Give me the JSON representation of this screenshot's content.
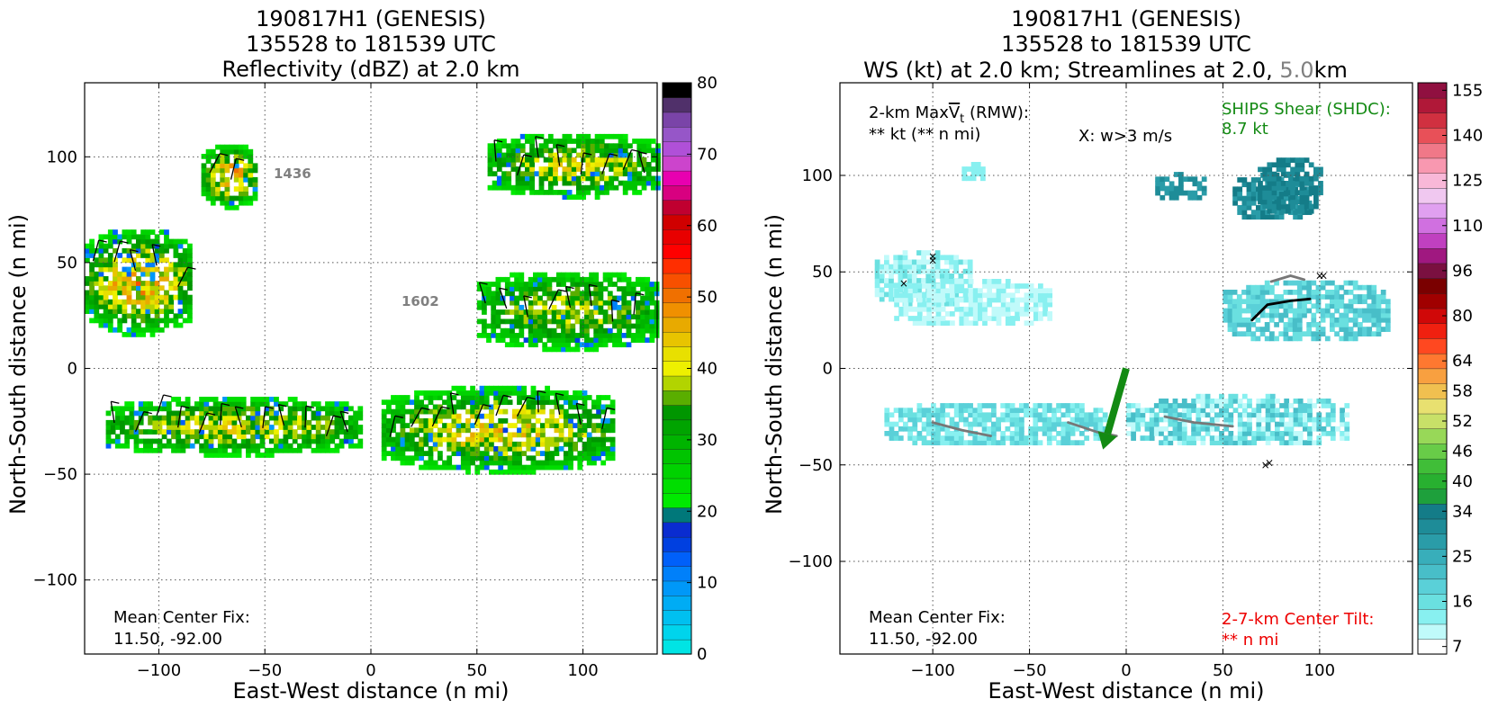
{
  "left_panel": {
    "title_lines": [
      "190817H1 (GENESIS)",
      "135528 to 181539 UTC",
      "Reflectivity (dBZ) at 2.0 km"
    ],
    "center_fix_label": "Mean Center Fix:",
    "center_fix_value": "11.50, -92.00",
    "time_labels": [
      "1436",
      "1602"
    ]
  },
  "right_panel": {
    "title_lines": [
      "190817H1 (GENESIS)",
      "135528 to 181539 UTC"
    ],
    "title_line3_prefix": "WS (kt) at 2.0 km; Streamlines at 2.0, ",
    "title_line3_gray": "5.0",
    "title_line3_suffix": "km",
    "maxvt_prefix": "2-km Max",
    "maxvt_v": "V",
    "maxvt_sub": "t",
    "maxvt_suffix": " (RMW):",
    "maxvt_value": "** kt (** n mi)",
    "w_label": "X: w>3 m/s",
    "ships_label": "SHIPS Shear (SHDC):",
    "ships_value": "8.7 kt",
    "center_fix_label": "Mean Center Fix:",
    "center_fix_value": "11.50, -92.00",
    "tilt_label": "2-7-km Center Tilt:",
    "tilt_value": "** n mi"
  },
  "colors": {
    "ships": "#138a13",
    "tilt": "#ee0000",
    "gray_text": "#808080",
    "shear_arrow": "#138a13"
  },
  "chart_data": [
    {
      "type": "heatmap",
      "title": "190817H1 (GENESIS) 135528 to 181539 UTC Reflectivity (dBZ) at 2.0 km",
      "xlabel": "East-West distance (n mi)",
      "ylabel": "North-South distance (n mi)",
      "xlim": [
        -135,
        135
      ],
      "ylim": [
        -135,
        135
      ],
      "xticks": [
        -100,
        -50,
        0,
        50,
        100
      ],
      "yticks": [
        -100,
        -50,
        0,
        50,
        100
      ],
      "grid": true,
      "colorbar": {
        "ticks": [
          0,
          10,
          20,
          30,
          40,
          50,
          60,
          70,
          80
        ],
        "bins": 32,
        "colors": [
          "#00e4e4",
          "#00d4ec",
          "#00c0f0",
          "#00acf4",
          "#0098f8",
          "#0080fa",
          "#0060fa",
          "#0040e0",
          "#0a2cd0",
          "#00787a",
          "#00ea00",
          "#00de00",
          "#00d200",
          "#00c400",
          "#00b400",
          "#00a400",
          "#009600",
          "#5aae00",
          "#b2d400",
          "#eef000",
          "#e8e000",
          "#e8c400",
          "#e8aa00",
          "#f09000",
          "#f07000",
          "#f85000",
          "#ff2e00",
          "#ff0000",
          "#e80000",
          "#d00000",
          "#c00030",
          "#d80080",
          "#e800b0",
          "#cc44cc",
          "#b050d8",
          "#9656c8",
          "#7a44a8",
          "#50306a",
          "#000000"
        ],
        "ticklabels_note": "colorbar 0-80 dBZ"
      },
      "echo_regions": [
        {
          "name": "north-west cells",
          "x": [
            -80,
            -55
          ],
          "y": [
            75,
            105
          ],
          "peak_dbz": 45
        },
        {
          "name": "west cluster",
          "x": [
            -135,
            -85
          ],
          "y": [
            15,
            65
          ],
          "peak_dbz": 45
        },
        {
          "name": "north-east band",
          "x": [
            55,
            135
          ],
          "y": [
            80,
            110
          ],
          "peak_dbz": 40
        },
        {
          "name": "east band",
          "x": [
            50,
            135
          ],
          "y": [
            8,
            45
          ],
          "peak_dbz": 38
        },
        {
          "name": "southern band west",
          "x": [
            -125,
            -5
          ],
          "y": [
            -42,
            -15
          ],
          "peak_dbz": 40
        },
        {
          "name": "southern band east",
          "x": [
            5,
            115
          ],
          "y": [
            -50,
            -10
          ],
          "peak_dbz": 42
        }
      ]
    },
    {
      "type": "heatmap",
      "title": "190817H1 (GENESIS) 135528 to 181539 UTC WS (kt) at 2.0 km; Streamlines at 2.0, 5.0km",
      "xlabel": "East-West distance (n mi)",
      "ylabel": "North-South distance (n mi)",
      "xlim": [
        -148,
        148
      ],
      "ylim": [
        -148,
        148
      ],
      "xticks": [
        -100,
        -50,
        0,
        50,
        100
      ],
      "yticks": [
        -100,
        -50,
        0,
        50,
        100
      ],
      "grid": true,
      "colorbar": {
        "ticklabels": [
          "7",
          "16",
          "25",
          "34",
          "40",
          "46",
          "52",
          "58",
          "64",
          "80",
          "96",
          "110",
          "125",
          "140",
          "155"
        ],
        "bins": 33,
        "colors": [
          "#ffffff",
          "#c0fafa",
          "#88f0f0",
          "#6ae0e0",
          "#5ad0d8",
          "#48bec8",
          "#38aeba",
          "#2a9ca8",
          "#1e8c98",
          "#147c88",
          "#1ea03c",
          "#28b030",
          "#40be38",
          "#68cc48",
          "#98d858",
          "#c8e068",
          "#e8e070",
          "#f0c050",
          "#f8a040",
          "#ff7830",
          "#ff4820",
          "#f02010",
          "#d00808",
          "#a00000",
          "#7a0000",
          "#7a1040",
          "#a01880",
          "#c040c0",
          "#d070e0",
          "#e0a0f0",
          "#f0c8f0",
          "#f8b8d8",
          "#f898b0",
          "#f07888",
          "#e85058",
          "#d03040",
          "#b01838",
          "#901040"
        ],
        "ticklabels_note": "colorbar 7-155 kt"
      },
      "shear_vector": {
        "from": [
          0,
          0
        ],
        "to": [
          -12,
          -42
        ]
      },
      "updraft_marks": [
        [
          -100,
          58
        ],
        [
          -100,
          56
        ],
        [
          -115,
          44
        ],
        [
          100,
          48
        ],
        [
          102,
          48
        ],
        [
          72,
          -50
        ],
        [
          74,
          -49
        ]
      ],
      "streamlines_2km": [
        [
          [
            65,
            25
          ],
          [
            73,
            33
          ],
          [
            85,
            35
          ],
          [
            95,
            36
          ]
        ]
      ],
      "streamlines_5km": [
        [
          [
            75,
            45
          ],
          [
            85,
            48
          ],
          [
            92,
            46
          ]
        ],
        [
          [
            -100,
            -28
          ],
          [
            -85,
            -32
          ],
          [
            -70,
            -35
          ]
        ],
        [
          [
            -30,
            -28
          ],
          [
            -15,
            -33
          ],
          [
            -5,
            -35
          ]
        ],
        [
          [
            20,
            -25
          ],
          [
            35,
            -28
          ],
          [
            55,
            -30
          ]
        ]
      ]
    }
  ]
}
